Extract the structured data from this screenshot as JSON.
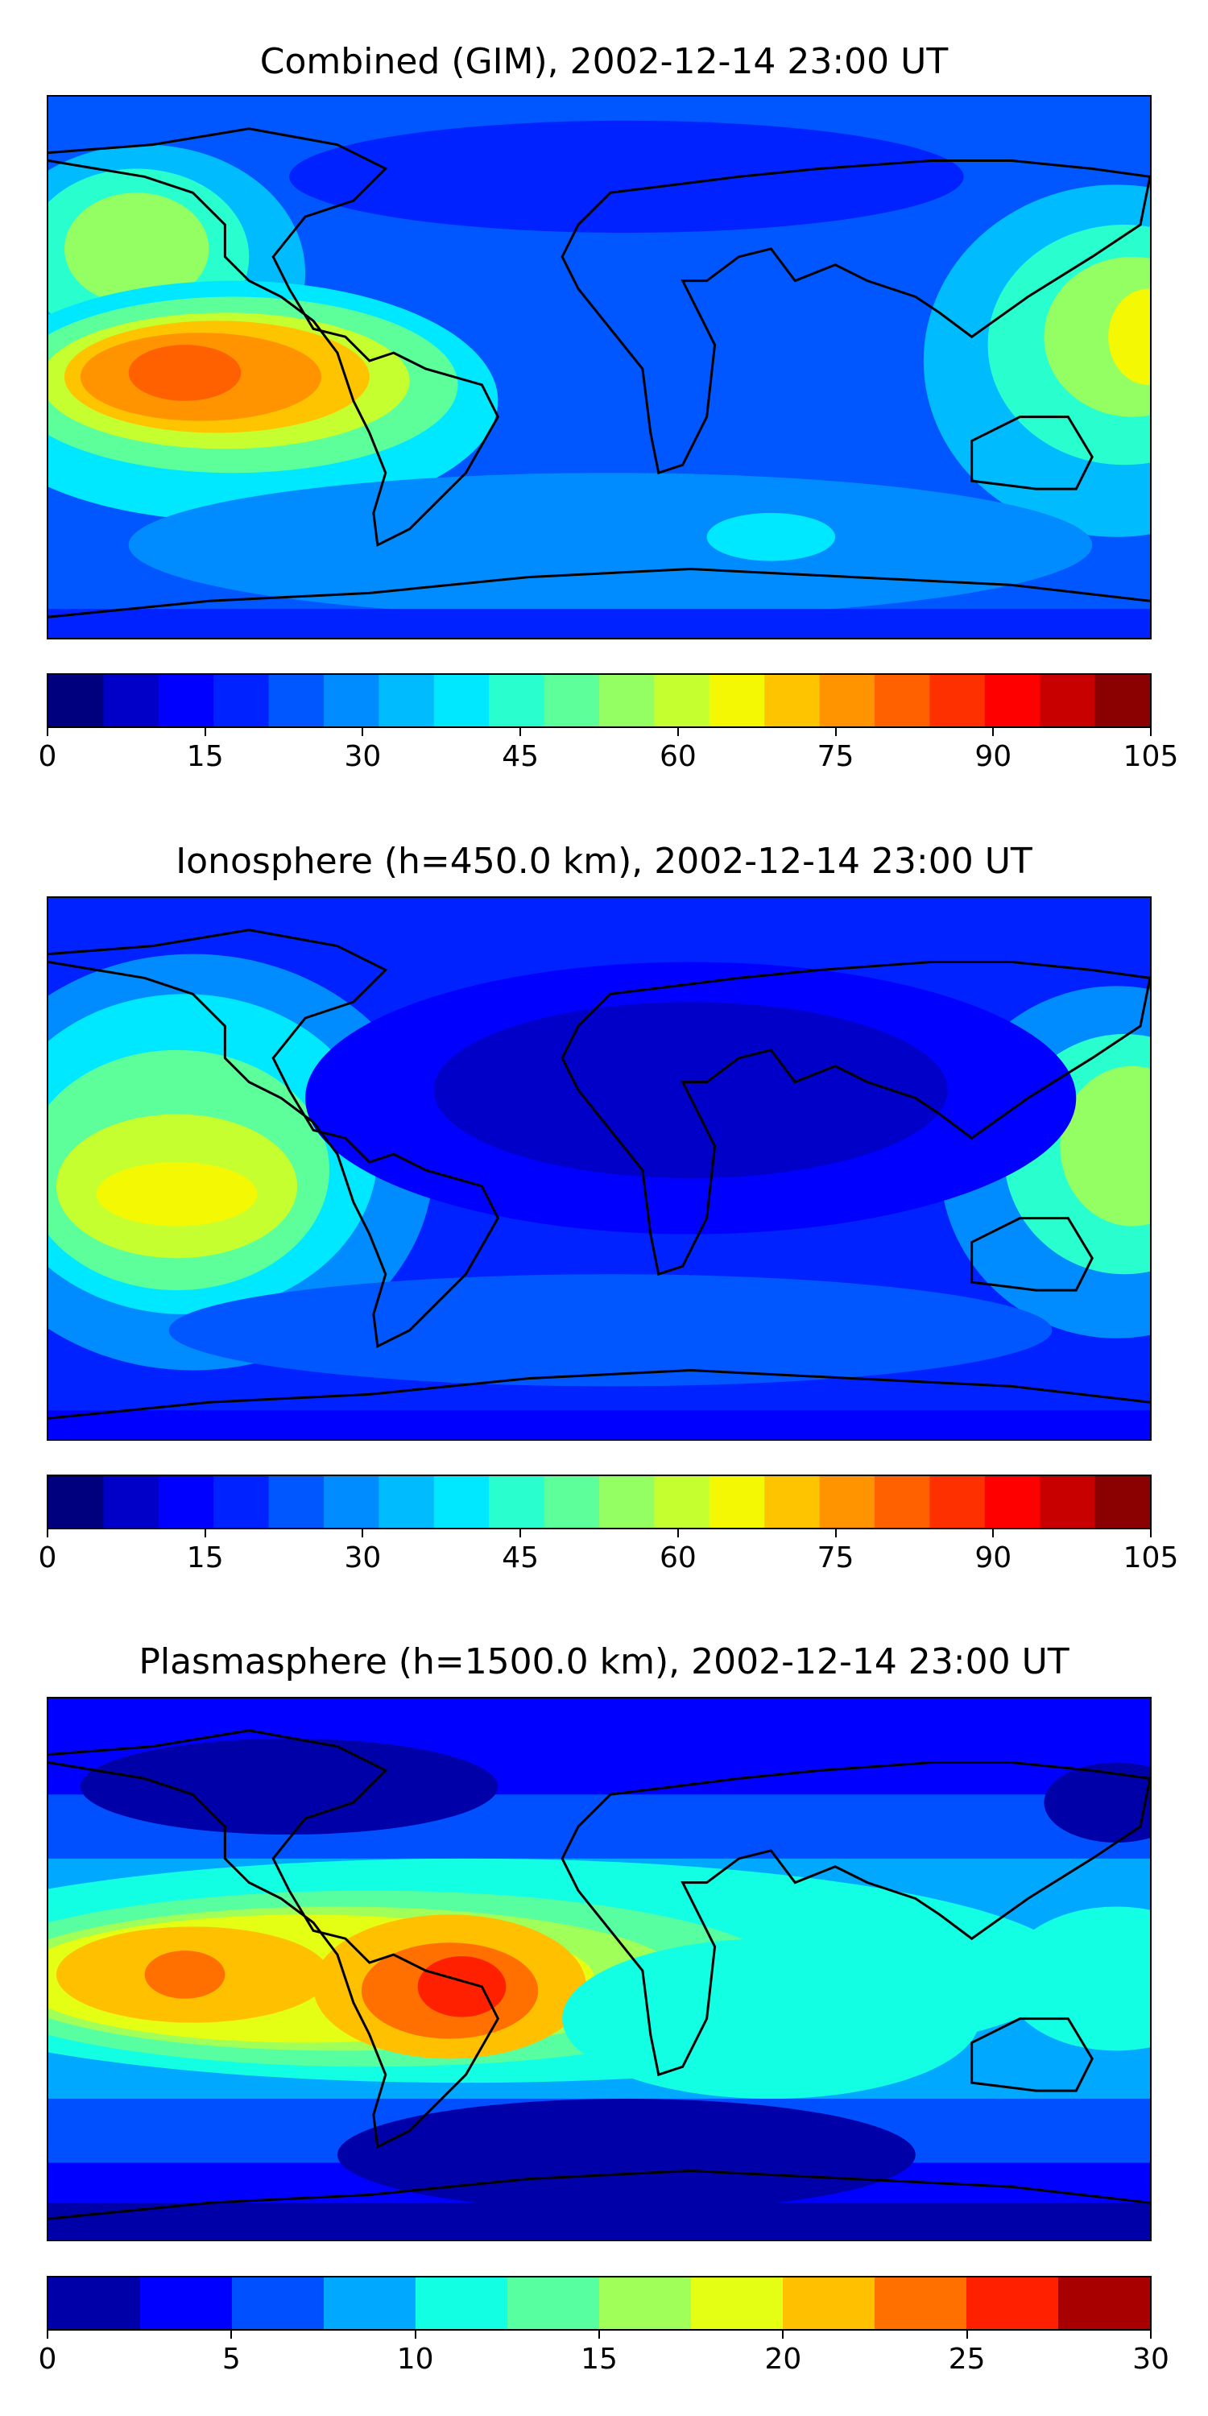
{
  "panels": [
    {
      "title": "Combined (GIM), 2002-12-14 23:00 UT",
      "colorbar": {
        "min": 0,
        "max": 105,
        "step": 5,
        "ticks": [
          "0",
          "15",
          "30",
          "45",
          "60",
          "75",
          "90",
          "105"
        ],
        "colors": [
          "#00007f",
          "#0000c8",
          "#0000ff",
          "#0022ff",
          "#0056ff",
          "#008cff",
          "#00bcff",
          "#00e8ff",
          "#29ffce",
          "#5cff9a",
          "#93ff63",
          "#c6ff30",
          "#f4f802",
          "#ffc400",
          "#ff9400",
          "#ff6100",
          "#ff3000",
          "#ff0000",
          "#c80000",
          "#8b0000"
        ]
      }
    },
    {
      "title": "Ionosphere  (h=450.0 km), 2002-12-14 23:00 UT",
      "colorbar": {
        "min": 0,
        "max": 105,
        "step": 5,
        "ticks": [
          "0",
          "15",
          "30",
          "45",
          "60",
          "75",
          "90",
          "105"
        ],
        "colors": [
          "#00007f",
          "#0000c8",
          "#0000ff",
          "#0022ff",
          "#0056ff",
          "#008cff",
          "#00bcff",
          "#00e8ff",
          "#29ffce",
          "#5cff9a",
          "#93ff63",
          "#c6ff30",
          "#f4f802",
          "#ffc400",
          "#ff9400",
          "#ff6100",
          "#ff3000",
          "#ff0000",
          "#c80000",
          "#8b0000"
        ]
      }
    },
    {
      "title": "Plasmasphere (h=1500.0 km), 2002-12-14 23:00 UT",
      "colorbar": {
        "min": 0,
        "max": 30,
        "step": 2.5,
        "ticks": [
          "0",
          "5",
          "10",
          "15",
          "20",
          "25",
          "30"
        ],
        "colors": [
          "#0000a8",
          "#0000ff",
          "#0050ff",
          "#00a8ff",
          "#12ffe4",
          "#58ffa0",
          "#a0ff58",
          "#e4ff14",
          "#ffc000",
          "#ff7000",
          "#ff2000",
          "#a80000"
        ]
      }
    }
  ],
  "chart_data": [
    {
      "type": "heatmap",
      "title": "Combined (GIM), 2002-12-14 23:00 UT",
      "projection": "plate carree world map with coastlines",
      "colormap": "jet",
      "levels_range": [
        0,
        105
      ],
      "peaks": [
        {
          "region": "eastern Pacific off South America",
          "value": 85
        },
        {
          "region": "western Pacific east of Asia",
          "value": 65
        },
        {
          "region": "North Pacific",
          "value": 50
        }
      ],
      "background_value": 20
    },
    {
      "type": "heatmap",
      "title": "Ionosphere  (h=450.0 km), 2002-12-14 23:00 UT",
      "projection": "plate carree world map with coastlines",
      "colormap": "jet",
      "levels_range": [
        0,
        105
      ],
      "peaks": [
        {
          "region": "eastern Pacific",
          "value": 65
        },
        {
          "region": "western Pacific east of Asia",
          "value": 55
        },
        {
          "region": "North Pacific",
          "value": 45
        }
      ],
      "background_value": 15
    },
    {
      "type": "heatmap",
      "title": "Plasmasphere (h=1500.0 km), 2002-12-14 23:00 UT",
      "projection": "plate carree world map with coastlines",
      "colormap": "jet",
      "levels_range": [
        0,
        30
      ],
      "peaks": [
        {
          "region": "Brazil",
          "value": 25
        },
        {
          "region": "eastern Pacific",
          "value": 24
        },
        {
          "region": "equatorial band",
          "value": 12
        }
      ],
      "background_value": 5
    }
  ]
}
